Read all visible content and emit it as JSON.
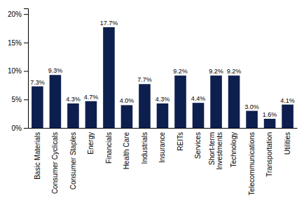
{
  "chart_data": {
    "type": "bar",
    "categories": [
      "Basic Materials",
      "Consumer Cyclicals",
      "Consumer Staples",
      "Energy",
      "Financials",
      "Health Care",
      "Industrials",
      "Insurance",
      "REITs",
      "Services",
      "Short-term\nInvestments",
      "Technology",
      "Telecommunications",
      "Transportation",
      "Utilities"
    ],
    "values": [
      7.3,
      9.3,
      4.3,
      4.7,
      17.7,
      4.0,
      7.7,
      4.3,
      9.2,
      4.4,
      9.2,
      9.2,
      3.0,
      1.6,
      4.1
    ],
    "value_labels": [
      "7.3%",
      "9.3%",
      "4.3%",
      "4.7%",
      "17.7%",
      "4.0%",
      "7.7%",
      "4.3%",
      "9.2%",
      "4.4%",
      "9.2%",
      "9.2%",
      "3.0%",
      "1.6%",
      "4.1%"
    ],
    "data_labels": true,
    "color": "#0d1f4e",
    "ylim": [
      0,
      21
    ],
    "yticks": [
      {
        "value": 0,
        "label": "0%"
      },
      {
        "value": 5,
        "label": "5%"
      },
      {
        "value": 10,
        "label": "10%"
      },
      {
        "value": 15,
        "label": "15%"
      },
      {
        "value": 20,
        "label": "20%"
      }
    ],
    "grid": false
  }
}
